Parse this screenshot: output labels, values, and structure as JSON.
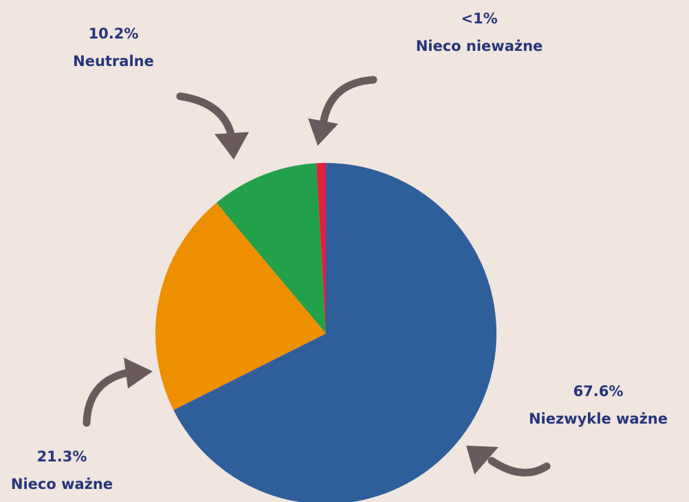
{
  "chart_data": {
    "type": "pie",
    "categories": [
      "Niezwykle ważne",
      "Nieco ważne",
      "Neutralne",
      "Nieco nieważne"
    ],
    "values": [
      67.6,
      21.3,
      10.2,
      0.9
    ],
    "value_labels": [
      "67.6%",
      "21.3%",
      "10.2%",
      "<1%"
    ],
    "colors": [
      "#2f5f9a",
      "#ee8f00",
      "#23a04a",
      "#e0213f"
    ]
  }
}
